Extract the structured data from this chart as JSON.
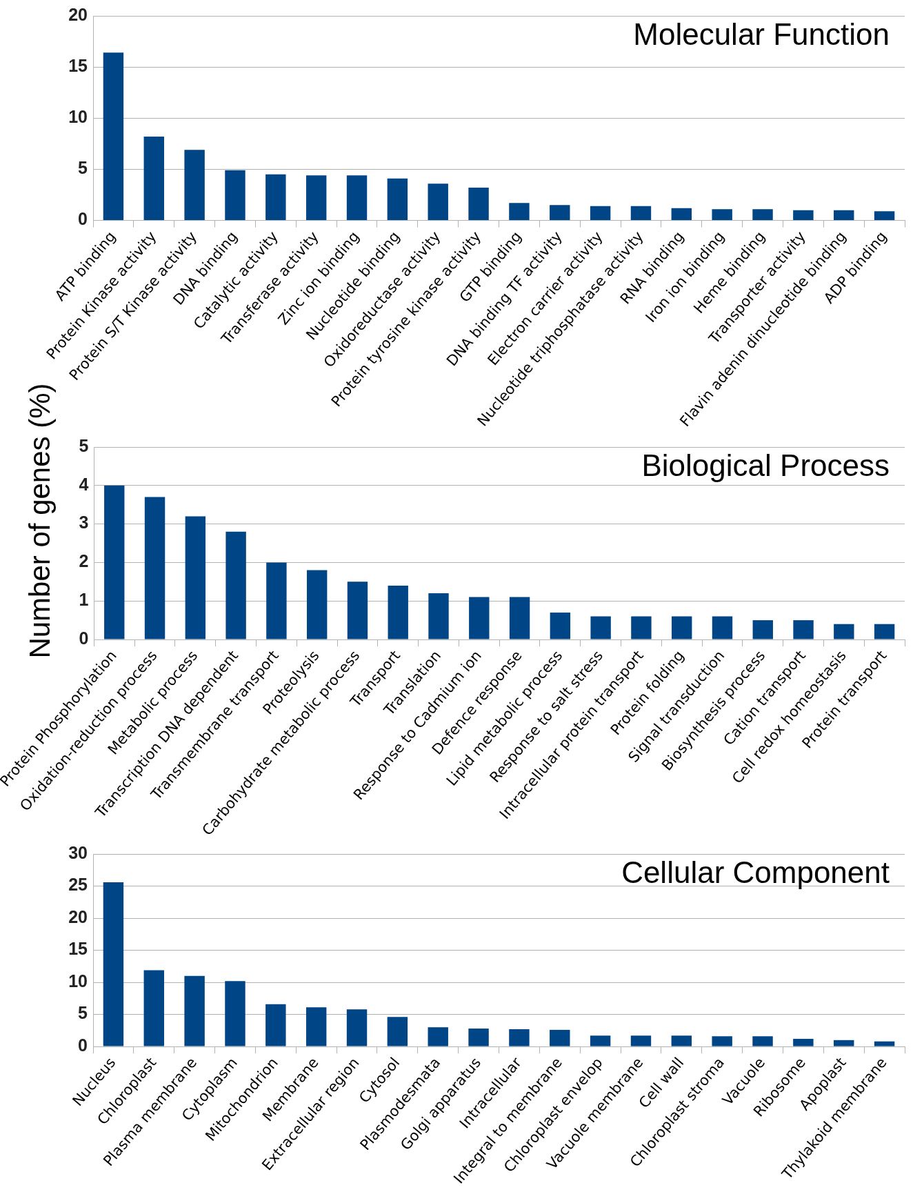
{
  "chart_data": [
    {
      "type": "bar",
      "title": "Molecular Function",
      "categories": [
        "ATP binding",
        "Protein Kinase activity",
        "Protein S/T Kinase activity",
        "DNA binding",
        "Catalytic activity",
        "Transferase activity",
        "Zinc ion binding",
        "Nucleotide binding",
        "Oxidoreductase activity",
        "Protein tyrosine kinase activity",
        "GTP binding",
        "DNA binding TF activity",
        "Electron carrier activity",
        "Nucleotide triphosphatase activity",
        "RNA binding",
        "Iron ion binding",
        "Heme binding",
        "Transporter activity",
        "Flavin adenin dinucleotide binding",
        "ADP binding"
      ],
      "values": [
        16.4,
        8.2,
        6.9,
        4.9,
        4.5,
        4.4,
        4.4,
        4.1,
        3.6,
        3.2,
        1.7,
        1.5,
        1.4,
        1.4,
        1.2,
        1.1,
        1.1,
        1.0,
        1.0,
        0.9
      ],
      "color": "#004586",
      "ylim": [
        0,
        20
      ],
      "yticks": [
        0,
        5,
        10,
        15,
        20
      ],
      "grid": "y"
    },
    {
      "type": "bar",
      "title": "Biological Process",
      "ylabel": "Number of genes (%)",
      "categories": [
        "Protein Phosphorylation",
        "Oxidation-reduction process",
        "Metabolic process",
        "Transcription DNA dependent",
        "Transmembrane transport",
        "Proteolysis",
        "Carbohydrate metabolic process",
        "Transport",
        "Translation",
        "Response to Cadmium ion",
        "Defence response",
        "Lipid metabolic process",
        "Response to salt stress",
        "Intracellular protein transport",
        "Protein folding",
        "Signal transduction",
        "Biosynthesis process",
        "Cation transport",
        "Cell redox homeostasis",
        "Protein transport"
      ],
      "values": [
        4.0,
        3.7,
        3.2,
        2.8,
        2.0,
        1.8,
        1.5,
        1.4,
        1.2,
        1.1,
        1.1,
        0.7,
        0.6,
        0.6,
        0.6,
        0.6,
        0.5,
        0.5,
        0.4,
        0.4
      ],
      "color": "#004586",
      "ylim": [
        0,
        5
      ],
      "yticks": [
        0,
        1,
        2,
        3,
        4,
        5
      ],
      "grid": "y"
    },
    {
      "type": "bar",
      "title": "Cellular Component",
      "categories": [
        "Nucleus",
        "Chloroplast",
        "Plasma membrane",
        "Cytoplasm",
        "Mitochondrion",
        "Membrane",
        "Extracellular region",
        "Cytosol",
        "Plasmodesmata",
        "Golgi apparatus",
        "Intracellular",
        "Integral to membrane",
        "Chloroplast envelop",
        "Vacuole membrane",
        "Cell wall",
        "Chloroplast stroma",
        "Vacuole",
        "Ribosome",
        "Apoplast",
        "Thylakoid membrane"
      ],
      "values": [
        25.6,
        11.9,
        11.0,
        10.2,
        6.6,
        6.1,
        5.8,
        4.6,
        3.0,
        2.8,
        2.7,
        2.6,
        1.7,
        1.7,
        1.7,
        1.6,
        1.6,
        1.2,
        1.0,
        0.8
      ],
      "color": "#004586",
      "ylim": [
        0,
        30
      ],
      "yticks": [
        0,
        5,
        10,
        15,
        20,
        25,
        30
      ],
      "grid": "y"
    }
  ]
}
